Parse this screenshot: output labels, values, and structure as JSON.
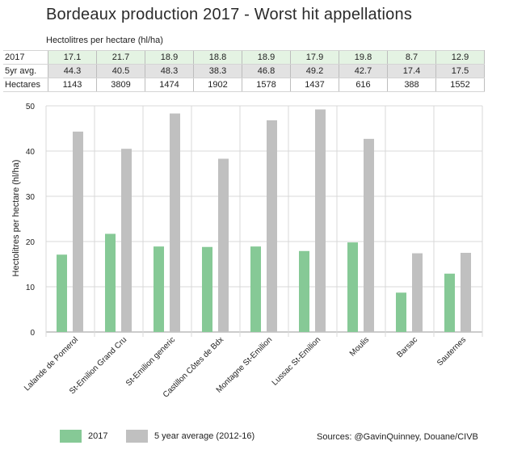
{
  "colors": {
    "y2017": "#86c996",
    "avg": "#c0c0c0",
    "grid": "#d9d9d9",
    "axis": "#9a9a9a"
  },
  "table": {
    "subtitle": "Hectolitres per hectare (hl/ha)",
    "rows": [
      {
        "label": "2017",
        "values": [
          "17.1",
          "21.7",
          "18.9",
          "18.8",
          "18.9",
          "17.9",
          "19.8",
          "8.7",
          "12.9"
        ]
      },
      {
        "label": "5yr avg.",
        "values": [
          "44.3",
          "40.5",
          "48.3",
          "38.3",
          "46.8",
          "49.2",
          "42.7",
          "17.4",
          "17.5"
        ]
      },
      {
        "label": "Hectares",
        "values": [
          "1143",
          "3809",
          "1474",
          "1902",
          "1578",
          "1437",
          "616",
          "388",
          "1552"
        ]
      }
    ]
  },
  "chart_data": {
    "type": "bar",
    "title": "Bordeaux production 2017 - Worst hit appellations",
    "ylabel": "Hectolitres per hectare (hl/ha)",
    "xlabel": "",
    "ylim": [
      0,
      50
    ],
    "yticks": [
      0,
      10,
      20,
      30,
      40,
      50
    ],
    "grid": true,
    "categories": [
      "Lalande de Pomerol",
      "St-Emilion Grand Cru",
      "St-Emilion generic",
      "Castillon Côtes de Bdx",
      "Montagne St-Emilion",
      "Lussac St-Emilion",
      "Moulis",
      "Barsac",
      "Sauternes"
    ],
    "series": [
      {
        "name": "2017",
        "values": [
          17.1,
          21.7,
          18.9,
          18.8,
          18.9,
          17.9,
          19.8,
          8.7,
          12.9
        ]
      },
      {
        "name": "5 year average (2012-16)",
        "values": [
          44.3,
          40.5,
          48.3,
          38.3,
          46.8,
          49.2,
          42.7,
          17.4,
          17.5
        ]
      }
    ]
  },
  "legend": {
    "label_2017": "2017",
    "label_avg": "5 year average (2012-16)"
  },
  "source": "Sources: @GavinQuinney, Douane/CIVB"
}
